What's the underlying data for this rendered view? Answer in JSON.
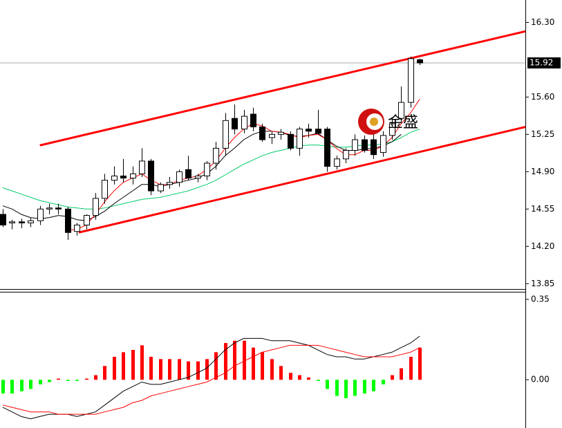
{
  "chart_data": [
    {
      "type": "candlestick",
      "xlim": [
        -0.3,
        56.4
      ],
      "ylim": [
        13.8,
        16.51
      ],
      "yticks": [
        {
          "value": 16.3,
          "label": "16.30"
        },
        {
          "value": 15.6,
          "label": "15.60"
        },
        {
          "value": 15.25,
          "label": "15.25"
        },
        {
          "value": 14.9,
          "label": "14.90"
        },
        {
          "value": 14.55,
          "label": "14.55"
        },
        {
          "value": 14.2,
          "label": "14.20"
        },
        {
          "value": 13.85,
          "label": "13.85"
        }
      ],
      "last_price": {
        "value": 15.92,
        "label": "15.92"
      },
      "watermark": "金盛",
      "up_color": "#ffffff",
      "down_color": "#000000",
      "candles": {
        "open": [
          14.5,
          14.42,
          14.43,
          14.42,
          14.44,
          14.55,
          14.56,
          14.55,
          14.34,
          14.4,
          14.49,
          14.65,
          14.82,
          14.86,
          14.84,
          14.88,
          15.0,
          14.72,
          14.78,
          14.8,
          14.92,
          14.84,
          14.86,
          14.98,
          15.12,
          15.4,
          15.3,
          15.44,
          15.32,
          15.22,
          15.25,
          15.25,
          15.12,
          15.3,
          15.3,
          15.3,
          14.95,
          15.02,
          15.1,
          15.2,
          15.2,
          15.08,
          15.24,
          15.4,
          15.55,
          15.95
        ],
        "high": [
          14.55,
          14.45,
          14.46,
          14.47,
          14.58,
          14.6,
          14.6,
          14.57,
          14.42,
          14.5,
          14.7,
          14.88,
          14.95,
          15.02,
          14.95,
          15.12,
          15.02,
          14.8,
          14.85,
          14.92,
          15.05,
          14.88,
          15.0,
          15.18,
          15.45,
          15.53,
          15.48,
          15.5,
          15.35,
          15.28,
          15.3,
          15.28,
          15.32,
          15.35,
          15.48,
          15.32,
          15.05,
          15.12,
          15.25,
          15.24,
          15.25,
          15.28,
          15.4,
          15.7,
          15.98,
          15.96
        ],
        "low": [
          14.38,
          14.36,
          14.37,
          14.38,
          14.4,
          14.5,
          14.5,
          14.26,
          14.3,
          14.36,
          14.45,
          14.6,
          14.78,
          14.8,
          14.78,
          14.85,
          14.68,
          14.7,
          14.74,
          14.76,
          14.82,
          14.8,
          14.82,
          14.92,
          15.05,
          15.25,
          15.26,
          15.28,
          15.18,
          15.16,
          15.2,
          15.1,
          15.05,
          15.22,
          15.25,
          14.9,
          14.92,
          14.98,
          15.05,
          15.08,
          15.02,
          15.04,
          15.2,
          15.35,
          15.5,
          15.9
        ],
        "close": [
          14.4,
          14.43,
          14.42,
          14.44,
          14.55,
          14.56,
          14.55,
          14.33,
          14.4,
          14.49,
          14.65,
          14.82,
          14.86,
          14.84,
          14.88,
          15.0,
          14.72,
          14.78,
          14.8,
          14.9,
          14.84,
          14.86,
          14.98,
          15.12,
          15.38,
          15.3,
          15.42,
          15.32,
          15.2,
          15.25,
          15.27,
          15.12,
          15.3,
          15.28,
          15.26,
          14.95,
          15.02,
          15.1,
          15.2,
          15.1,
          15.06,
          15.24,
          15.35,
          15.55,
          15.96,
          15.92
        ]
      },
      "lines": [
        {
          "color": "#00cc66",
          "values": [
            14.75,
            14.72,
            14.69,
            14.66,
            14.63,
            14.61,
            14.59,
            14.57,
            14.56,
            14.55,
            14.55,
            14.56,
            14.58,
            14.6,
            14.62,
            14.64,
            14.65,
            14.66,
            14.68,
            14.7,
            14.72,
            14.75,
            14.78,
            14.82,
            14.87,
            14.92,
            14.97,
            15.01,
            15.05,
            15.08,
            15.1,
            15.12,
            15.14,
            15.15,
            15.15,
            15.14,
            15.13,
            15.13,
            15.14,
            15.15,
            15.15,
            15.16,
            15.18,
            15.22,
            15.27,
            15.3
          ]
        },
        {
          "color": "#000000",
          "values": [
            14.58,
            14.55,
            14.5,
            14.47,
            14.46,
            14.47,
            14.49,
            14.48,
            14.45,
            14.44,
            14.48,
            14.53,
            14.6,
            14.66,
            14.72,
            14.78,
            14.78,
            14.76,
            14.78,
            14.8,
            14.82,
            14.84,
            14.88,
            14.95,
            15.05,
            15.12,
            15.2,
            15.25,
            15.28,
            15.28,
            15.27,
            15.24,
            15.23,
            15.24,
            15.26,
            15.2,
            15.14,
            15.1,
            15.1,
            15.11,
            15.12,
            15.14,
            15.18,
            15.25,
            null,
            null
          ]
        },
        {
          "color": "#ff0000",
          "values": [
            null,
            null,
            null,
            null,
            null,
            null,
            null,
            14.35,
            14.36,
            14.4,
            14.5,
            14.62,
            14.72,
            14.8,
            14.84,
            14.88,
            14.82,
            14.78,
            14.78,
            14.82,
            14.84,
            14.86,
            14.92,
            15.0,
            15.12,
            15.22,
            15.3,
            15.35,
            15.33,
            15.28,
            15.27,
            15.25,
            15.22,
            15.24,
            15.25,
            15.2,
            15.12,
            15.06,
            15.06,
            15.1,
            15.1,
            15.14,
            15.22,
            15.35,
            15.45,
            15.58
          ]
        }
      ],
      "trendlines": [
        {
          "color": "#ff0000",
          "x": [
            4.0,
            56.4
          ],
          "y": [
            15.147,
            16.216
          ]
        },
        {
          "color": "#ff0000",
          "x": [
            8.2,
            56.4
          ],
          "y": [
            14.33,
            15.32
          ]
        }
      ]
    },
    {
      "type": "macd",
      "xlim": [
        -0.3,
        56.4
      ],
      "ylim": [
        -0.21,
        0.38
      ],
      "yticks": [
        {
          "value": 0.35,
          "label": "0.35"
        },
        {
          "value": 0,
          "label": "0.00"
        }
      ],
      "histogram": {
        "up_color": "#ff0000",
        "down_color": "#00ff00",
        "values": [
          -0.06,
          -0.06,
          -0.05,
          -0.04,
          -0.02,
          -0.01,
          0.005,
          -0.005,
          -0.005,
          0.005,
          0.02,
          0.06,
          0.1,
          0.12,
          0.13,
          0.15,
          0.1,
          0.09,
          0.09,
          0.09,
          0.08,
          0.08,
          0.09,
          0.12,
          0.16,
          0.17,
          0.17,
          0.14,
          0.12,
          0.09,
          0.06,
          0.03,
          0.02,
          0.01,
          -0.005,
          -0.04,
          -0.07,
          -0.08,
          -0.07,
          -0.06,
          -0.05,
          -0.02,
          0.02,
          0.05,
          0.1,
          0.14
        ]
      },
      "lines": [
        {
          "color": "#000000",
          "values": [
            -0.12,
            -0.14,
            -0.16,
            -0.17,
            -0.16,
            -0.15,
            -0.15,
            -0.15,
            -0.16,
            -0.15,
            -0.14,
            -0.11,
            -0.08,
            -0.05,
            -0.03,
            -0.01,
            -0.02,
            -0.02,
            -0.01,
            0.0,
            0.01,
            0.03,
            0.05,
            0.09,
            0.13,
            0.16,
            0.18,
            0.18,
            0.18,
            0.17,
            0.17,
            0.17,
            0.16,
            0.15,
            0.13,
            0.11,
            0.1,
            0.1,
            0.09,
            0.09,
            0.1,
            0.11,
            0.12,
            0.14,
            0.16,
            0.19
          ]
        },
        {
          "color": "#ff0000",
          "values": [
            -0.11,
            -0.12,
            -0.13,
            -0.14,
            -0.14,
            -0.14,
            -0.15,
            -0.15,
            -0.15,
            -0.15,
            -0.15,
            -0.14,
            -0.13,
            -0.12,
            -0.1,
            -0.09,
            -0.07,
            -0.06,
            -0.05,
            -0.04,
            -0.03,
            -0.02,
            -0.01,
            0.01,
            0.03,
            0.06,
            0.08,
            0.1,
            0.12,
            0.13,
            0.14,
            0.15,
            0.15,
            0.15,
            0.15,
            0.14,
            0.13,
            0.12,
            0.11,
            0.1,
            0.1,
            0.1,
            0.1,
            0.11,
            0.12,
            0.14
          ]
        }
      ]
    }
  ]
}
